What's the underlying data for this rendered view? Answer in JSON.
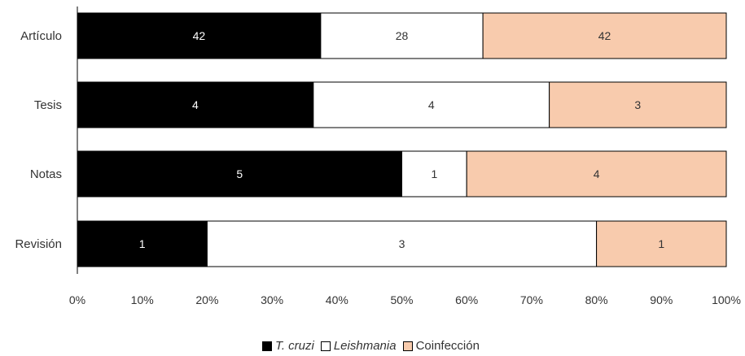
{
  "chart_data": {
    "type": "bar",
    "orientation": "horizontal",
    "stacked": "percent",
    "categories": [
      "Artículo",
      "Tesis",
      "Notas",
      "Revisión"
    ],
    "series": [
      {
        "name": "T. cruzi",
        "values": [
          42,
          4,
          5,
          1
        ],
        "color": "#000000",
        "label_color": "#ffffff",
        "italic": true
      },
      {
        "name": "Leishmania",
        "values": [
          28,
          4,
          1,
          3
        ],
        "color": "#ffffff",
        "label_color": "#333333",
        "italic": true
      },
      {
        "name": "Coinfección",
        "values": [
          42,
          3,
          4,
          1
        ],
        "color": "#f8cbad",
        "label_color": "#333333",
        "italic": false
      }
    ],
    "xticks": [
      "0%",
      "10%",
      "20%",
      "30%",
      "40%",
      "50%",
      "60%",
      "70%",
      "80%",
      "90%",
      "100%"
    ],
    "xlim": [
      0,
      100
    ],
    "grid": false,
    "legend_position": "bottom"
  }
}
